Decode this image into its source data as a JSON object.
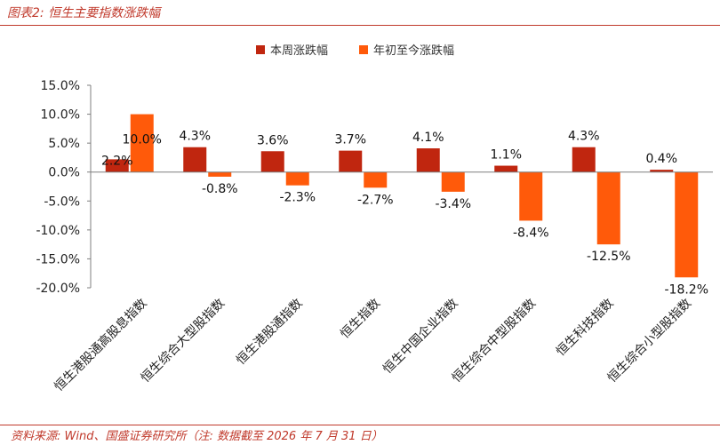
{
  "header": {
    "title": "图表2:  恒生主要指数涨跌幅"
  },
  "footer": {
    "source": "资料来源: Wind、国盛证券研究所（注: 数据截至 2026 年 7 月 31 日）"
  },
  "colors": {
    "weekly": "#c0260f",
    "ytd": "#ff5a0a",
    "accent": "#c0392b"
  },
  "chart_data": {
    "type": "bar",
    "categories": [
      "恒生港股通高股息指数",
      "恒生综合大型股指数",
      "恒生港股通指数",
      "恒生指数",
      "恒生中国企业指数",
      "恒生综合中型股指数",
      "恒生科技指数",
      "恒生综合小型股指数"
    ],
    "series": [
      {
        "name": "本周涨跌幅",
        "values": [
          2.2,
          4.3,
          3.6,
          3.7,
          4.1,
          1.1,
          4.3,
          0.4
        ],
        "labels": [
          "2.2%",
          "4.3%",
          "3.6%",
          "3.7%",
          "4.1%",
          "1.1%",
          "4.3%",
          "0.4%"
        ]
      },
      {
        "name": "年初至今涨跌幅",
        "values": [
          10.0,
          -0.8,
          -2.3,
          -2.7,
          -3.4,
          -8.4,
          -12.5,
          -18.2
        ],
        "labels": [
          "10.0%",
          "-0.8%",
          "-2.3%",
          "-2.7%",
          "-3.4%",
          "-8.4%",
          "-12.5%",
          "-18.2%"
        ]
      }
    ],
    "yticks": [
      15,
      10,
      5,
      0,
      -5,
      -10,
      -15,
      -20
    ],
    "ytick_labels": [
      "15.0%",
      "10.0%",
      "5.0%",
      "0.0%",
      "-5.0%",
      "-10.0%",
      "-15.0%",
      "-20.0%"
    ],
    "ylim": [
      -20,
      15
    ],
    "legend_position": "top-center",
    "grid": false
  }
}
